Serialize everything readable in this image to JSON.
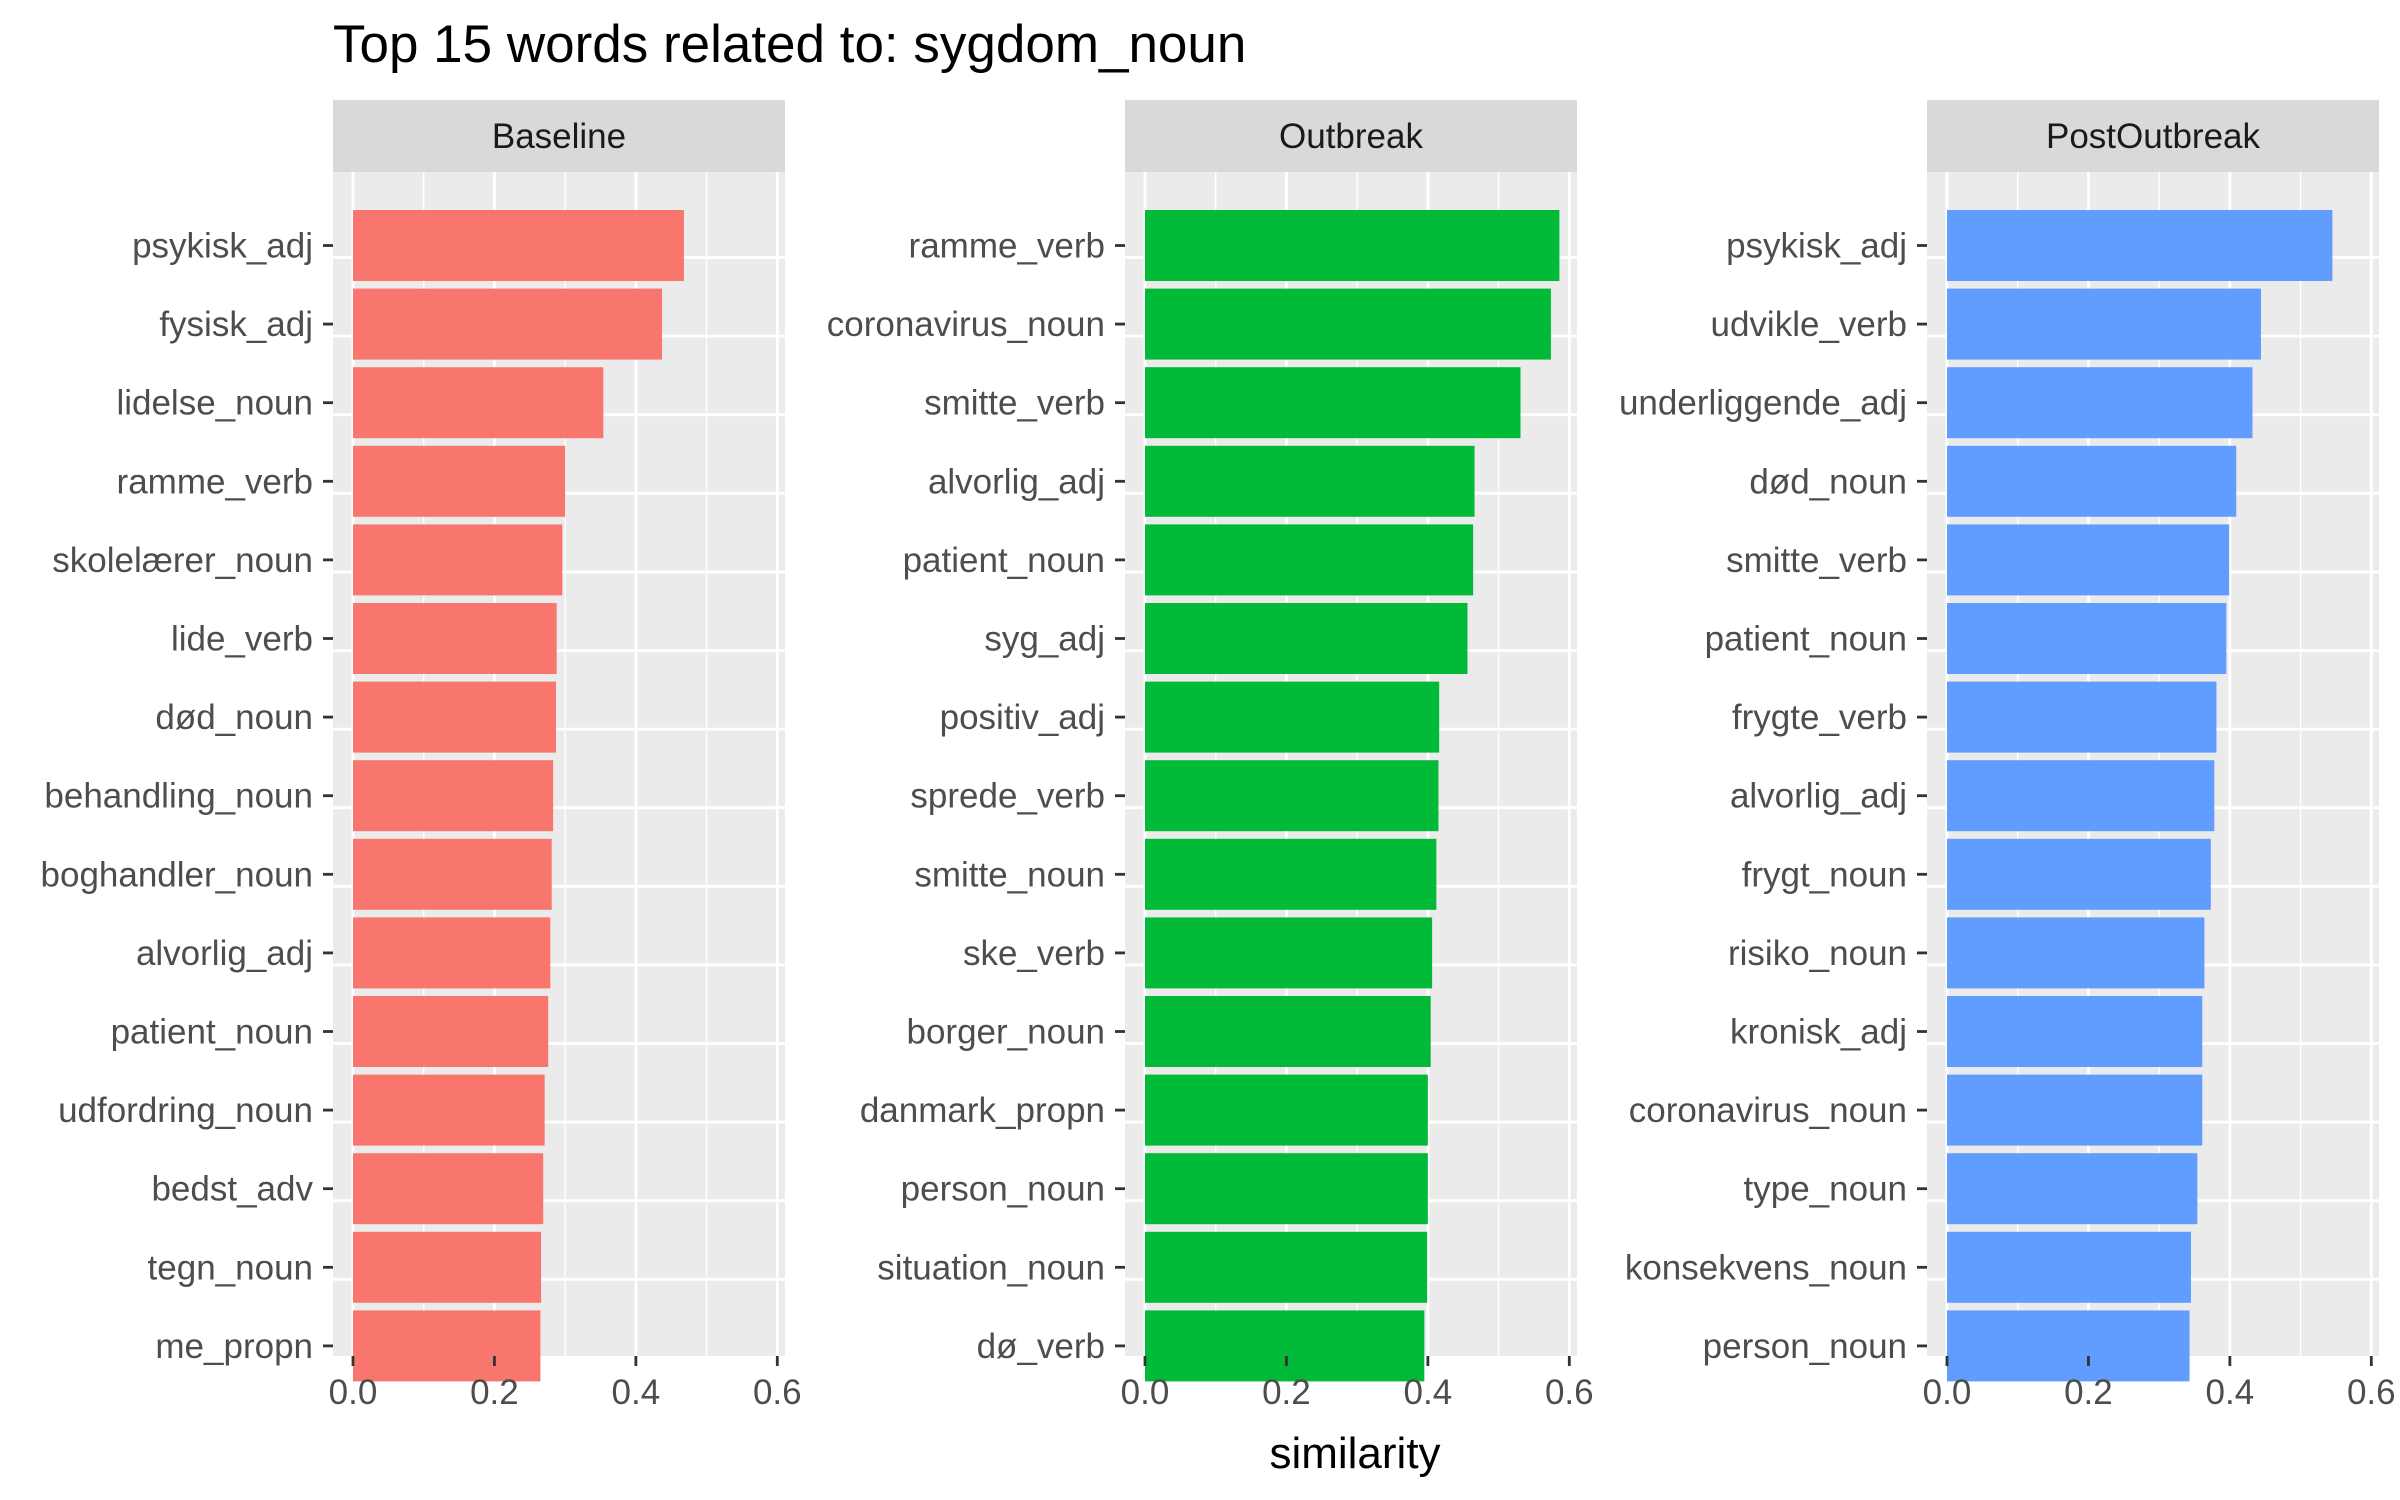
{
  "chart_data": {
    "type": "bar",
    "orientation": "horizontal",
    "title": "Top 15 words related to: sygdom_noun",
    "xlabel": "similarity",
    "ylabel": "",
    "xlim": [
      0,
      0.6
    ],
    "xticks": [
      "0.0",
      "0.2",
      "0.4",
      "0.6"
    ],
    "grid": true,
    "legend": "none",
    "panels": [
      {
        "name": "Baseline",
        "color": "#F8766D",
        "categories": [
          "psykisk_adj",
          "fysisk_adj",
          "lidelse_noun",
          "ramme_verb",
          "skolelærer_noun",
          "lide_verb",
          "død_noun",
          "behandling_noun",
          "boghandler_noun",
          "alvorlig_adj",
          "patient_noun",
          "udfordring_noun",
          "bedst_adv",
          "tegn_noun",
          "me_propn"
        ],
        "values": [
          0.468,
          0.437,
          0.354,
          0.3,
          0.296,
          0.288,
          0.287,
          0.283,
          0.281,
          0.279,
          0.276,
          0.271,
          0.269,
          0.266,
          0.265
        ]
      },
      {
        "name": "Outbreak",
        "color": "#00BA38",
        "categories": [
          "ramme_verb",
          "coronavirus_noun",
          "smitte_verb",
          "alvorlig_adj",
          "patient_noun",
          "syg_adj",
          "positiv_adj",
          "sprede_verb",
          "smitte_noun",
          "ske_verb",
          "borger_noun",
          "danmark_propn",
          "person_noun",
          "situation_noun",
          "dø_verb"
        ],
        "values": [
          0.586,
          0.574,
          0.531,
          0.466,
          0.464,
          0.456,
          0.416,
          0.415,
          0.412,
          0.406,
          0.404,
          0.4,
          0.4,
          0.399,
          0.395
        ]
      },
      {
        "name": "PostOutbreak",
        "color": "#619CFF",
        "categories": [
          "psykisk_adj",
          "udvikle_verb",
          "underliggende_adj",
          "død_noun",
          "smitte_verb",
          "patient_noun",
          "frygte_verb",
          "alvorlig_adj",
          "frygt_noun",
          "risiko_noun",
          "kronisk_adj",
          "coronavirus_noun",
          "type_noun",
          "konsekvens_noun",
          "person_noun"
        ],
        "values": [
          0.545,
          0.444,
          0.432,
          0.409,
          0.399,
          0.395,
          0.381,
          0.378,
          0.373,
          0.364,
          0.361,
          0.361,
          0.354,
          0.345,
          0.343
        ]
      }
    ]
  }
}
